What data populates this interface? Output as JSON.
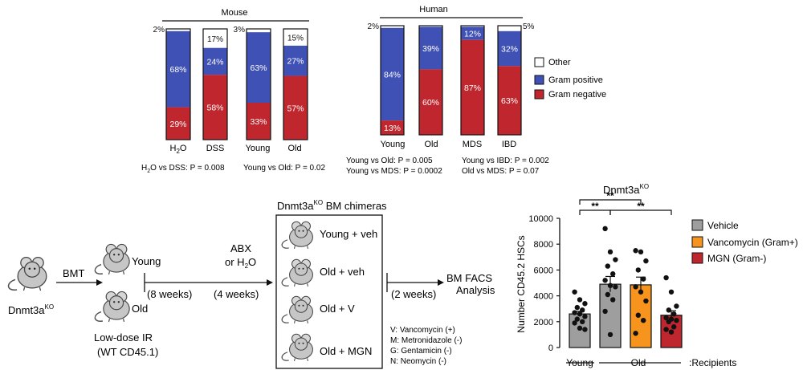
{
  "colors": {
    "other": "#ffffff",
    "gram_positive": "#3f51b5",
    "gram_negative": "#c0262d",
    "vehicle": "#9e9e9e",
    "vancomycin": "#f7941d",
    "mgn": "#c0262d",
    "outline": "#111111"
  },
  "chart_data": [
    {
      "type": "bar",
      "stacked": true,
      "group_label": "Mouse",
      "categories": [
        "H2O",
        "DSS",
        "Young",
        "Old"
      ],
      "series": [
        {
          "name": "Gram negative",
          "values": [
            29,
            58,
            33,
            57
          ],
          "labels": [
            "29%",
            "58%",
            "33%",
            "57%"
          ]
        },
        {
          "name": "Gram positive",
          "values": [
            68,
            24,
            63,
            27
          ],
          "labels": [
            "68%",
            "24%",
            "63%",
            "27%"
          ]
        },
        {
          "name": "Other",
          "values": [
            2,
            17,
            3,
            15
          ],
          "labels": [
            "2%",
            "17%",
            "3%",
            "15%"
          ]
        }
      ],
      "stats": [
        "vs DSS: P = 0.008",
        "Young vs Old: P = 0.02"
      ]
    },
    {
      "type": "bar",
      "stacked": true,
      "group_label": "Human",
      "categories": [
        "Young",
        "Old",
        "MDS",
        "IBD"
      ],
      "series": [
        {
          "name": "Gram negative",
          "values": [
            13,
            60,
            87,
            63
          ],
          "labels": [
            "13%",
            "60%",
            "87%",
            "63%"
          ]
        },
        {
          "name": "Gram positive",
          "values": [
            84,
            39,
            12,
            32
          ],
          "labels": [
            "84%",
            "39%",
            "12%",
            "32%"
          ]
        },
        {
          "name": "Other",
          "values": [
            2,
            1,
            1,
            5
          ],
          "labels": [
            "2%",
            "",
            "",
            "5%"
          ]
        }
      ],
      "stats": [
        "Young vs Old: P = 0.005",
        "Young vs MDS: P = 0.0002",
        "Young vs IBD: P = 0.002",
        "Old vs MDS: P = 0.07"
      ]
    },
    {
      "type": "bar",
      "title_main": "Dnmt3a",
      "title_sup": "KO",
      "ylabel": "Number CD45.2 HSCs",
      "ylim": [
        0,
        10000
      ],
      "yticks": [
        "0",
        "2000",
        "4000",
        "6000",
        "8000",
        "10000"
      ],
      "categories": [
        "Vehicle",
        "Vancomycin (Gram+)",
        "MGN (Gram-)"
      ],
      "bars": [
        {
          "name": "Young Vehicle",
          "value": 2600,
          "sem": 200,
          "color_key": "vehicle",
          "points": [
            4300,
            3700,
            3400,
            3100,
            2900,
            2700,
            2600,
            2400,
            2200,
            2000,
            1900,
            1500,
            1400
          ]
        },
        {
          "name": "Old Vehicle",
          "value": 4900,
          "sem": 600,
          "color_key": "vehicle",
          "points": [
            9200,
            7400,
            6800,
            6300,
            5700,
            5200,
            4800,
            4700,
            4100,
            3700,
            2800,
            1000
          ]
        },
        {
          "name": "Old Vancomycin",
          "value": 4850,
          "sem": 600,
          "color_key": "vancomycin",
          "points": [
            7500,
            7400,
            6700,
            6000,
            5300,
            4700,
            4300,
            3600,
            2500,
            2100,
            1100
          ]
        },
        {
          "name": "Old MGN",
          "value": 2500,
          "sem": 350,
          "color_key": "mgn",
          "points": [
            5400,
            4300,
            3200,
            2900,
            2600,
            2300,
            2200,
            2100,
            2000,
            1600,
            1400,
            1200
          ]
        }
      ],
      "significance": [
        {
          "from": 0,
          "to": 2,
          "label": "**"
        },
        {
          "from": 0,
          "to": 1,
          "label": "**"
        },
        {
          "from": 1,
          "to": 3,
          "label": "**"
        }
      ],
      "recipient_groups": [
        "Young",
        "Old"
      ],
      "recipients_label": ":Recipients"
    }
  ],
  "legend1": {
    "other": "Other",
    "gram_positive": "Gram positive",
    "gram_negative": "Gram negative"
  },
  "legend2": {
    "vehicle": "Vehicle",
    "vancomycin": "Vancomycin (Gram+)",
    "mgn": "MGN (Gram-)"
  },
  "schematic": {
    "donor_main": "Dnmt3a",
    "donor_sup": "KO",
    "bmt": "BMT",
    "young": "Young",
    "old": "Old",
    "eight_weeks": "(8 weeks)",
    "low_dose": "Low-dose IR",
    "wt": "(WT CD45.1)",
    "abx": "ABX",
    "or_h2o": "or H",
    "or_h2o_sub": "2",
    "or_h2o_tail": "O",
    "four_weeks": "(4 weeks)",
    "chimera_main": "Dnmt3a",
    "chimera_sup": "KO",
    "chimera_tail": " BM chimeras",
    "groups": [
      "Young + veh",
      "Old + veh",
      "Old + V",
      "Old + MGN"
    ],
    "two_weeks": "(2 weeks)",
    "facs1": "BM FACS",
    "facs2": "Analysis",
    "abbrev": [
      "V: Vancomycin (+)",
      "M: Metronidazole (-)",
      "G: Gentamicin (-)",
      "N: Neomycin (-)"
    ]
  }
}
